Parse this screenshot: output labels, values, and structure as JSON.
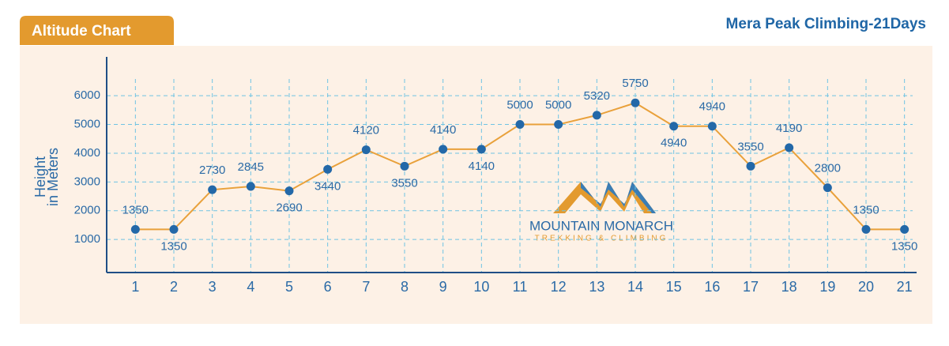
{
  "tab_label": "Altitude Chart",
  "logo": {
    "name": "MOUNTAIN MONARCH",
    "tagline": "TREKKING & CLIMBING"
  },
  "chart_data": {
    "type": "line",
    "title": "Mera Peak Climbing-21Days",
    "ylabel": [
      "Height",
      "in Meters"
    ],
    "categories": [
      "1",
      "2",
      "3",
      "4",
      "5",
      "6",
      "7",
      "8",
      "9",
      "10",
      "11",
      "12",
      "13",
      "14",
      "15",
      "16",
      "17",
      "18",
      "19",
      "20",
      "21"
    ],
    "values": [
      1350,
      1350,
      2730,
      2845,
      2690,
      3440,
      4120,
      3550,
      4140,
      4140,
      5000,
      5000,
      5320,
      5750,
      4940,
      4940,
      3550,
      4190,
      2800,
      1350,
      1350
    ],
    "color": "#e9a13b",
    "marker_color": "#2368a8",
    "ylim": [
      -150,
      7350
    ],
    "yticks": [
      1000,
      2000,
      3000,
      4000,
      5000,
      6000
    ],
    "grid": true
  }
}
